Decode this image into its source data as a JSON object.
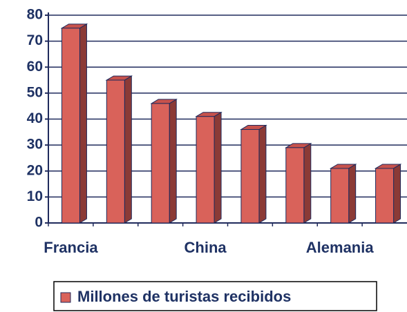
{
  "chart_data": {
    "type": "bar",
    "categories": [
      "Francia",
      null,
      null,
      "China",
      null,
      null,
      "Alemania",
      null
    ],
    "series": [
      {
        "name": "Millones de turistas recibidos",
        "color": "#d9625a",
        "values": [
          75,
          55,
          46,
          41,
          36,
          29,
          21,
          21
        ]
      }
    ],
    "ylim": [
      0,
      80
    ],
    "yticks": [
      0,
      10,
      20,
      30,
      40,
      50,
      60,
      70,
      80
    ],
    "grid": true,
    "legend": "bottom"
  }
}
